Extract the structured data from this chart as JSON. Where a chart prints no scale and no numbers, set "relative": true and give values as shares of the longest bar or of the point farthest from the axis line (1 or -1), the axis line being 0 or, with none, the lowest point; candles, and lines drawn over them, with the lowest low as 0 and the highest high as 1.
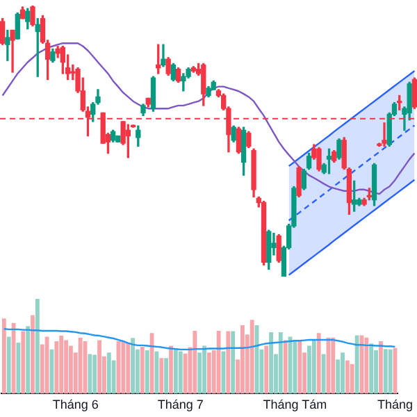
{
  "chart_data": [
    {
      "type": "candlestick",
      "relative": true,
      "marker": "none",
      "categories": [
        null,
        null,
        null,
        null,
        null,
        null,
        null,
        null,
        null,
        null,
        null,
        null,
        null,
        null,
        null,
        null,
        null,
        null,
        null,
        null,
        null,
        null,
        null,
        null,
        null,
        null,
        null,
        null,
        null,
        null,
        null,
        null,
        null,
        null,
        null,
        null,
        null,
        null,
        null,
        null,
        null,
        null,
        null,
        null,
        null,
        null,
        null,
        null,
        null,
        null,
        null,
        null,
        null,
        null,
        null,
        null,
        null,
        null,
        null,
        null,
        null,
        null,
        null,
        null,
        null,
        null,
        null,
        null,
        null,
        null,
        null,
        null,
        null,
        null,
        null,
        null,
        null,
        null,
        null,
        null,
        null,
        null,
        null
      ],
      "ohlc": [
        [
          0.941,
          0.952,
          0.856,
          0.861
        ],
        [
          0.856,
          0.909,
          0.797,
          0.882
        ],
        [
          0.909,
          0.909,
          0.754,
          0.872
        ],
        [
          0.877,
          0.973,
          0.877,
          0.968
        ],
        [
          0.984,
          0.995,
          0.952,
          0.952
        ],
        [
          0.941,
          0.989,
          0.914,
          0.979
        ],
        [
          0.995,
          1,
          0.925,
          0.93
        ],
        [
          0.904,
          0.952,
          0.738,
          0.93
        ],
        [
          0.952,
          0.963,
          0.861,
          0.866
        ],
        [
          0.861,
          0.872,
          0.727,
          0.802
        ],
        [
          0.797,
          0.84,
          0.791,
          0.829
        ],
        [
          0.84,
          0.85,
          0.808,
          0.824
        ],
        [
          0.845,
          0.85,
          0.749,
          0.791
        ],
        [
          0.77,
          0.818,
          0.727,
          0.749
        ],
        [
          0.754,
          0.781,
          0.727,
          0.751
        ],
        [
          0.765,
          0.77,
          0.679,
          0.685
        ],
        [
          0.685,
          0.733,
          0.61,
          0.615
        ],
        [
          0.61,
          0.626,
          0.519,
          0.588
        ],
        [
          0.599,
          0.642,
          0.572,
          0.636
        ],
        [
          0.642,
          0.69,
          0.636,
          0.663
        ],
        [
          0.604,
          0.604,
          0.492,
          0.492
        ],
        [
          0.524,
          0.529,
          0.455,
          0.497
        ],
        [
          0.503,
          0.54,
          0.497,
          0.535
        ],
        [
          0.497,
          0.519,
          0.497,
          0.519
        ],
        [
          0.572,
          0.572,
          0.487,
          0.492
        ],
        [
          0.54,
          0.561,
          0.439,
          0.519
        ],
        [
          0.556,
          0.559,
          0.551,
          0.553
        ],
        [
          0.513,
          0.556,
          0.481,
          0.54
        ],
        [
          0.604,
          0.636,
          0.594,
          0.631
        ],
        [
          0.658,
          0.658,
          0.626,
          0.636
        ],
        [
          0.62,
          0.738,
          0.61,
          0.733
        ],
        [
          0.781,
          0.856,
          0.749,
          0.77
        ],
        [
          0.781,
          0.856,
          0.775,
          0.802
        ],
        [
          0.802,
          0.808,
          0.743,
          0.749
        ],
        [
          0.727,
          0.786,
          0.722,
          0.781
        ],
        [
          0.765,
          0.77,
          0.717,
          0.722
        ],
        [
          0.722,
          0.749,
          0.685,
          0.738
        ],
        [
          0.738,
          0.77,
          0.733,
          0.765
        ],
        [
          0.77,
          0.775,
          0.754,
          0.759
        ],
        [
          0.765,
          0.786,
          0.743,
          0.749
        ],
        [
          0.781,
          0.786,
          0.631,
          0.674
        ],
        [
          0.668,
          0.701,
          0.663,
          0.695
        ],
        [
          0.69,
          0.722,
          0.69,
          0.717
        ],
        [
          0.685,
          0.69,
          0.663,
          0.668
        ],
        [
          0.668,
          0.674,
          0.615,
          0.62
        ],
        [
          0.62,
          0.626,
          0.46,
          0.524
        ],
        [
          0.503,
          0.556,
          0.497,
          0.551
        ],
        [
          0.545,
          0.551,
          0.455,
          0.46
        ],
        [
          0.422,
          0.551,
          0.374,
          0.54
        ],
        [
          0.529,
          0.535,
          0.476,
          0.481
        ],
        [
          0.465,
          0.471,
          0.294,
          0.321
        ],
        [
          0.289,
          0.294,
          0.257,
          0.273
        ],
        [
          0.273,
          0.278,
          0.043,
          0.053
        ],
        [
          0.053,
          0.171,
          0.027,
          0.166
        ],
        [
          0.107,
          0.16,
          0.08,
          0.123
        ],
        [
          0.15,
          0.155,
          0.053,
          0.059
        ],
        [
          0,
          0.112,
          0,
          0.107
        ],
        [
          0.107,
          0.193,
          0.102,
          0.187
        ],
        [
          0.187,
          0.332,
          0.182,
          0.326
        ],
        [
          0.401,
          0.406,
          0.294,
          0.299
        ],
        [
          0.326,
          0.396,
          0.321,
          0.39
        ],
        [
          0.401,
          0.455,
          0.396,
          0.444
        ],
        [
          0.471,
          0.487,
          0.433,
          0.439
        ],
        [
          0.471,
          0.476,
          0.39,
          0.396
        ],
        [
          0.385,
          0.417,
          0.38,
          0.412
        ],
        [
          0.433,
          0.471,
          0.38,
          0.444
        ],
        [
          0.46,
          0.465,
          0.422,
          0.428
        ],
        [
          0.439,
          0.508,
          0.433,
          0.503
        ],
        [
          0.503,
          0.513,
          0.396,
          0.401
        ],
        [
          0.396,
          0.401,
          0.23,
          0.273
        ],
        [
          0.267,
          0.353,
          0.241,
          0.283
        ],
        [
          0.267,
          0.289,
          0.262,
          0.283
        ],
        [
          0.283,
          0.289,
          0.262,
          0.267
        ],
        [
          0.299,
          0.326,
          0.283,
          0.294
        ],
        [
          0.283,
          0.417,
          0.262,
          0.412
        ],
        [
          0.487,
          0.492,
          0.481,
          0.484
        ],
        [
          0.503,
          0.567,
          0.481,
          0.492
        ],
        [
          0.487,
          0.604,
          0.481,
          0.599
        ],
        [
          0.599,
          0.642,
          0.594,
          0.636
        ],
        [
          0.647,
          0.668,
          0.615,
          0.642
        ],
        [
          0.599,
          0.626,
          0.54,
          0.62
        ],
        [
          0.604,
          0.717,
          0.578,
          0.711
        ],
        [
          0.727,
          0.733,
          0.62,
          0.626
        ]
      ],
      "colors": [
        "#f23645",
        "#089981",
        "#f23645",
        "#089981",
        "#f23645",
        "#089981",
        "#f23645",
        "#089981",
        "#f23645",
        "#f23645",
        "#089981",
        "#f23645",
        "#f23645",
        "#f23645",
        "#f23645",
        "#f23645",
        "#f23645",
        "#f23645",
        "#089981",
        "#089981",
        "#f23645",
        "#f23645",
        "#089981",
        "#089981",
        "#f23645",
        "#f23645",
        "#f23645",
        "#089981",
        "#089981",
        "#f23645",
        "#089981",
        "#f23645",
        "#089981",
        "#f23645",
        "#089981",
        "#f23645",
        "#089981",
        "#089981",
        "#f23645",
        "#f23645",
        "#f23645",
        "#089981",
        "#089981",
        "#f23645",
        "#f23645",
        "#f23645",
        "#089981",
        "#f23645",
        "#089981",
        "#f23645",
        "#f23645",
        "#f23645",
        "#f23645",
        "#089981",
        "#089981",
        "#f23645",
        "#089981",
        "#089981",
        "#089981",
        "#f23645",
        "#089981",
        "#089981",
        "#f23645",
        "#f23645",
        "#089981",
        "#089981",
        "#f23645",
        "#089981",
        "#f23645",
        "#f23645",
        "#089981",
        "#089981",
        "#f23645",
        "#f23645",
        "#089981",
        "#f23645",
        "#f23645",
        "#089981",
        "#089981",
        "#f23645",
        "#089981",
        "#089981",
        "#f23645"
      ],
      "series": [
        {
          "type": "line",
          "color": "#7e57c2",
          "values": [
            0.668,
            0.695,
            0.722,
            0.749,
            0.77,
            0.791,
            0.807,
            0.824,
            0.834,
            0.845,
            0.85,
            0.856,
            0.861,
            0.861,
            0.861,
            0.861,
            0.85,
            0.834,
            0.813,
            0.791,
            0.77,
            0.749,
            0.722,
            0.701,
            0.679,
            0.663,
            0.647,
            0.636,
            0.626,
            0.62,
            0.62,
            0.62,
            0.62,
            0.62,
            0.626,
            0.631,
            0.631,
            0.636,
            0.642,
            0.647,
            0.658,
            0.679,
            0.695,
            0.701,
            0.701,
            0.695,
            0.69,
            0.684,
            0.674,
            0.663,
            0.647,
            0.62,
            0.594,
            0.561,
            0.529,
            0.497,
            0.471,
            0.449,
            0.428,
            0.406,
            0.39,
            0.374,
            0.364,
            0.353,
            0.342,
            0.332,
            0.326,
            0.321,
            0.316,
            0.316,
            0.316,
            0.321,
            0.321,
            0.316,
            0.31,
            0.305,
            0.321,
            0.332,
            0.353,
            0.38,
            0.406,
            0.433,
            0.455
          ]
        },
        {
          "type": "line",
          "color": "#2962ff",
          "line_style": "dashed",
          "values": [
            null,
            null,
            null,
            null,
            null,
            null,
            null,
            null,
            null,
            null,
            null,
            null,
            null,
            null,
            null,
            null,
            null,
            null,
            null,
            null,
            null,
            null,
            null,
            null,
            null,
            null,
            null,
            null,
            null,
            null,
            null,
            null,
            null,
            null,
            null,
            null,
            null,
            null,
            null,
            null,
            null,
            null,
            null,
            null,
            null,
            null,
            null,
            null,
            null,
            null,
            null,
            null,
            null,
            null,
            null,
            null,
            null,
            0.207,
            0.221,
            0.235,
            0.249,
            0.263,
            0.277,
            0.291,
            0.305,
            0.319,
            0.334,
            0.348,
            0.362,
            0.376,
            0.39,
            0.404,
            0.418,
            0.432,
            0.446,
            0.46,
            0.474,
            0.488,
            0.502,
            0.516,
            0.53,
            0.544,
            0.558
          ],
          "lower": [
            null,
            null,
            null,
            null,
            null,
            null,
            null,
            null,
            null,
            null,
            null,
            null,
            null,
            null,
            null,
            null,
            null,
            null,
            null,
            null,
            null,
            null,
            null,
            null,
            null,
            null,
            null,
            null,
            null,
            null,
            null,
            null,
            null,
            null,
            null,
            null,
            null,
            null,
            null,
            null,
            null,
            null,
            null,
            null,
            null,
            null,
            null,
            null,
            null,
            null,
            null,
            null,
            null,
            null,
            null,
            null,
            null,
            0.006,
            0.02,
            0.034,
            0.048,
            0.062,
            0.076,
            0.09,
            0.104,
            0.118,
            0.133,
            0.147,
            0.161,
            0.175,
            0.189,
            0.203,
            0.217,
            0.231,
            0.245,
            0.259,
            0.273,
            0.287,
            0.301,
            0.315,
            0.329,
            0.343,
            0.357
          ],
          "upper": [
            null,
            null,
            null,
            null,
            null,
            null,
            null,
            null,
            null,
            null,
            null,
            null,
            null,
            null,
            null,
            null,
            null,
            null,
            null,
            null,
            null,
            null,
            null,
            null,
            null,
            null,
            null,
            null,
            null,
            null,
            null,
            null,
            null,
            null,
            null,
            null,
            null,
            null,
            null,
            null,
            null,
            null,
            null,
            null,
            null,
            null,
            null,
            null,
            null,
            null,
            null,
            null,
            null,
            null,
            null,
            null,
            null,
            0.408,
            0.422,
            0.436,
            0.45,
            0.464,
            0.478,
            0.492,
            0.506,
            0.52,
            0.535,
            0.549,
            0.563,
            0.577,
            0.591,
            0.605,
            0.619,
            0.633,
            0.647,
            0.661,
            0.675,
            0.689,
            0.703,
            0.717,
            0.731,
            0.745,
            0.759
          ]
        },
        {
          "type": "line",
          "color": "#2962ff",
          "values": [
            null,
            null,
            null,
            null,
            null,
            null,
            null,
            null,
            null,
            null,
            null,
            null,
            null,
            null,
            null,
            null,
            null,
            null,
            null,
            null,
            null,
            null,
            null,
            null,
            null,
            null,
            null,
            null,
            null,
            null,
            null,
            null,
            null,
            null,
            null,
            null,
            null,
            null,
            null,
            null,
            null,
            null,
            null,
            null,
            null,
            null,
            null,
            null,
            null,
            null,
            null,
            null,
            null,
            null,
            null,
            null,
            null,
            0.408,
            0.422,
            0.436,
            0.45,
            0.464,
            0.478,
            0.492,
            0.506,
            0.52,
            0.535,
            0.549,
            0.563,
            0.577,
            0.591,
            0.605,
            0.619,
            0.633,
            0.647,
            0.661,
            0.675,
            0.689,
            0.703,
            0.717,
            0.731,
            0.745,
            0.759
          ]
        },
        {
          "type": "line",
          "color": "#2962ff",
          "values": [
            null,
            null,
            null,
            null,
            null,
            null,
            null,
            null,
            null,
            null,
            null,
            null,
            null,
            null,
            null,
            null,
            null,
            null,
            null,
            null,
            null,
            null,
            null,
            null,
            null,
            null,
            null,
            null,
            null,
            null,
            null,
            null,
            null,
            null,
            null,
            null,
            null,
            null,
            null,
            null,
            null,
            null,
            null,
            null,
            null,
            null,
            null,
            null,
            null,
            null,
            null,
            null,
            null,
            null,
            null,
            null,
            null,
            0.006,
            0.02,
            0.034,
            0.048,
            0.062,
            0.076,
            0.09,
            0.104,
            0.118,
            0.133,
            0.147,
            0.161,
            0.175,
            0.189,
            0.203,
            0.217,
            0.231,
            0.245,
            0.259,
            0.273,
            0.287,
            0.301,
            0.315,
            0.329,
            0.343,
            0.357
          ]
        }
      ],
      "ref_lines": [
        {
          "axis": "y",
          "value": 0.583,
          "color": "#f23645",
          "line_style": "dashed"
        }
      ]
    },
    {
      "type": "bar",
      "relative": true,
      "marker": "none",
      "categories": [
        null,
        null,
        null,
        null,
        null,
        null,
        null,
        null,
        null,
        null,
        null,
        null,
        null,
        null,
        null,
        "Tháng 6",
        null,
        null,
        null,
        null,
        null,
        null,
        null,
        null,
        null,
        null,
        null,
        null,
        null,
        null,
        null,
        null,
        null,
        null,
        null,
        null,
        null,
        "Tháng 7",
        null,
        null,
        null,
        null,
        null,
        null,
        null,
        null,
        null,
        null,
        null,
        null,
        null,
        null,
        null,
        null,
        null,
        null,
        null,
        null,
        null,
        null,
        null,
        "Tháng Tám",
        null,
        null,
        null,
        null,
        null,
        null,
        null,
        null,
        null,
        null,
        null,
        null,
        null,
        null,
        null,
        null,
        null,
        null,
        null,
        null,
        "Tháng"
      ],
      "series": [
        {
          "type": "bar",
          "values": [
            0.793,
            0.601,
            0.745,
            0.538,
            0.659,
            0.712,
            0.827,
            1,
            0.519,
            0.601,
            0.466,
            0.553,
            0.611,
            0.563,
            0.505,
            0.433,
            0.591,
            0.553,
            0.418,
            0.409,
            0.563,
            0.394,
            0.433,
            0.351,
            0.553,
            0.553,
            0.538,
            0.587,
            0.466,
            0.495,
            0.457,
            0.639,
            0.447,
            0.375,
            0.375,
            0.505,
            0.466,
            0.447,
            0.423,
            0.49,
            0.663,
            0.433,
            0.505,
            0.433,
            0.457,
            0.663,
            0.447,
            0.659,
            0.659,
            0.361,
            0.721,
            0.625,
            0.779,
            0.721,
            0.466,
            0.505,
            0.649,
            0.418,
            0.649,
            0.563,
            0.601,
            0.563,
            0.553,
            0.433,
            0.505,
            0.567,
            0.639,
            0.418,
            0.591,
            0.591,
            0.361,
            0.433,
            0.351,
            0.313,
            0.615,
            0.615,
            0.591,
            0.529,
            0.457,
            0.553,
            0.471,
            0.466,
            0.481
          ],
          "colors": [
            "#f7a7ab",
            "#92d2c7",
            "#f7a7ab",
            "#92d2c7",
            "#f7a7ab",
            "#92d2c7",
            "#f7a7ab",
            "#92d2c7",
            "#f7a7ab",
            "#f7a7ab",
            "#92d2c7",
            "#f7a7ab",
            "#f7a7ab",
            "#f7a7ab",
            "#f7a7ab",
            "#f7a7ab",
            "#f7a7ab",
            "#f7a7ab",
            "#92d2c7",
            "#92d2c7",
            "#f7a7ab",
            "#f7a7ab",
            "#92d2c7",
            "#92d2c7",
            "#f7a7ab",
            "#f7a7ab",
            "#f7a7ab",
            "#92d2c7",
            "#92d2c7",
            "#f7a7ab",
            "#92d2c7",
            "#f7a7ab",
            "#92d2c7",
            "#f7a7ab",
            "#92d2c7",
            "#f7a7ab",
            "#92d2c7",
            "#92d2c7",
            "#f7a7ab",
            "#f7a7ab",
            "#f7a7ab",
            "#92d2c7",
            "#92d2c7",
            "#f7a7ab",
            "#f7a7ab",
            "#f7a7ab",
            "#92d2c7",
            "#f7a7ab",
            "#92d2c7",
            "#f7a7ab",
            "#f7a7ab",
            "#f7a7ab",
            "#f7a7ab",
            "#92d2c7",
            "#92d2c7",
            "#f7a7ab",
            "#92d2c7",
            "#92d2c7",
            "#92d2c7",
            "#f7a7ab",
            "#92d2c7",
            "#92d2c7",
            "#f7a7ab",
            "#f7a7ab",
            "#92d2c7",
            "#92d2c7",
            "#f7a7ab",
            "#92d2c7",
            "#f7a7ab",
            "#f7a7ab",
            "#92d2c7",
            "#92d2c7",
            "#f7a7ab",
            "#f7a7ab",
            "#92d2c7",
            "#f7a7ab",
            "#f7a7ab",
            "#92d2c7",
            "#92d2c7",
            "#f7a7ab",
            "#92d2c7",
            "#92d2c7",
            "#f7a7ab"
          ]
        },
        {
          "type": "line",
          "color": "#2196f3",
          "values": [
            0.683,
            0.678,
            0.678,
            0.678,
            0.673,
            0.673,
            0.668,
            0.668,
            0.663,
            0.663,
            0.663,
            0.663,
            0.659,
            0.659,
            0.654,
            0.649,
            0.639,
            0.635,
            0.625,
            0.615,
            0.611,
            0.601,
            0.591,
            0.582,
            0.567,
            0.553,
            0.534,
            0.519,
            0.51,
            0.51,
            0.505,
            0.5,
            0.495,
            0.49,
            0.481,
            0.476,
            0.471,
            0.466,
            0.466,
            0.466,
            0.471,
            0.471,
            0.471,
            0.476,
            0.476,
            0.476,
            0.476,
            0.481,
            0.481,
            0.481,
            0.481,
            0.486,
            0.495,
            0.505,
            0.519,
            0.529,
            0.534,
            0.538,
            0.543,
            0.548,
            0.553,
            0.558,
            0.558,
            0.563,
            0.567,
            0.567,
            0.567,
            0.567,
            0.567,
            0.567,
            0.558,
            0.548,
            0.534,
            0.524,
            0.514,
            0.514,
            0.51,
            0.51,
            0.505,
            0.505,
            0.5,
            0.5,
            0.495
          ]
        }
      ]
    }
  ]
}
